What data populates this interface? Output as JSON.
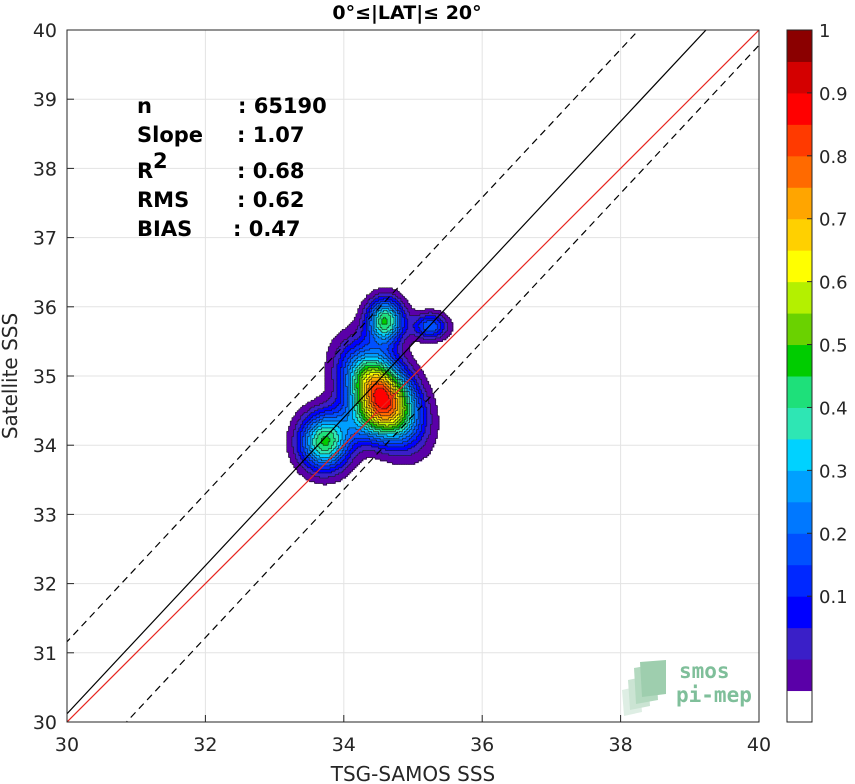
{
  "chart_data": {
    "type": "contour-scatter",
    "title": "0°≤|LAT|≤ 20°",
    "xlabel": "TSG-SAMOS SSS",
    "ylabel": "Satellite SSS",
    "xlim": [
      30,
      40
    ],
    "ylim": [
      30,
      40
    ],
    "xticks": [
      "30",
      "32",
      "34",
      "36",
      "38",
      "40"
    ],
    "yticks": [
      "30",
      "31",
      "32",
      "33",
      "34",
      "35",
      "36",
      "37",
      "38",
      "39",
      "40"
    ],
    "grid": true,
    "stats": [
      {
        "label": "n",
        "value": ": 65190"
      },
      {
        "label": "Slope",
        "value": ": 1.07"
      },
      {
        "label": "R",
        "sup": "2",
        "value": ": 0.68"
      },
      {
        "label": "RMS",
        "value": ": 0.62"
      },
      {
        "label": "BIAS",
        "value": ": 0.47"
      }
    ],
    "lines": [
      {
        "name": "identity",
        "color": "#e8251f",
        "style": "solid",
        "slope": 1.0,
        "intercept": 0.0
      },
      {
        "name": "regression",
        "color": "#000000",
        "style": "solid",
        "slope": 1.07,
        "intercept": -1.98
      },
      {
        "name": "upper bound",
        "color": "#000000",
        "style": "dashed",
        "slope": 1.07,
        "intercept": -0.94
      },
      {
        "name": "lower bound",
        "color": "#000000",
        "style": "dashed",
        "slope": 1.07,
        "intercept": -3.02
      }
    ],
    "density_peaks": [
      {
        "x": 34.55,
        "y": 34.72,
        "sx": 0.28,
        "sy": 0.45,
        "rot": -0.55,
        "amp": 0.97
      },
      {
        "x": 34.6,
        "y": 35.8,
        "sx": 0.18,
        "sy": 0.22,
        "rot": 0,
        "amp": 0.55
      },
      {
        "x": 33.72,
        "y": 34.05,
        "sx": 0.25,
        "sy": 0.28,
        "rot": 0,
        "amp": 0.55
      },
      {
        "x": 35.25,
        "y": 35.72,
        "sx": 0.17,
        "sy": 0.13,
        "rot": 0,
        "amp": 0.3
      },
      {
        "x": 34.3,
        "y": 34.35,
        "sx": 0.3,
        "sy": 0.22,
        "rot": 0,
        "amp": 0.2
      }
    ],
    "colorbar": {
      "ticks": [
        "0.1",
        "0.2",
        "0.3",
        "0.4",
        "0.5",
        "0.6",
        "0.7",
        "0.8",
        "0.9",
        "1"
      ],
      "range": [
        0,
        1
      ],
      "levels": [
        0.05,
        0.1,
        0.15,
        0.2,
        0.25,
        0.3,
        0.35,
        0.4,
        0.45,
        0.5,
        0.55,
        0.6,
        0.65,
        0.7,
        0.75,
        0.8,
        0.85,
        0.9,
        0.95
      ],
      "colors": [
        "#ffffff",
        "#5a00a8",
        "#3a1fc8",
        "#0000ff",
        "#0028ff",
        "#0050ff",
        "#0078ff",
        "#00a0ff",
        "#00d2ff",
        "#2ee6b4",
        "#1ee07a",
        "#00cc00",
        "#6ad200",
        "#b4f000",
        "#ffff00",
        "#ffd000",
        "#ffa500",
        "#ff6a00",
        "#ff3a00",
        "#ff0000",
        "#d40000",
        "#8b0000"
      ]
    },
    "logo": {
      "line1": "smos",
      "line2": "pi-mep"
    }
  }
}
